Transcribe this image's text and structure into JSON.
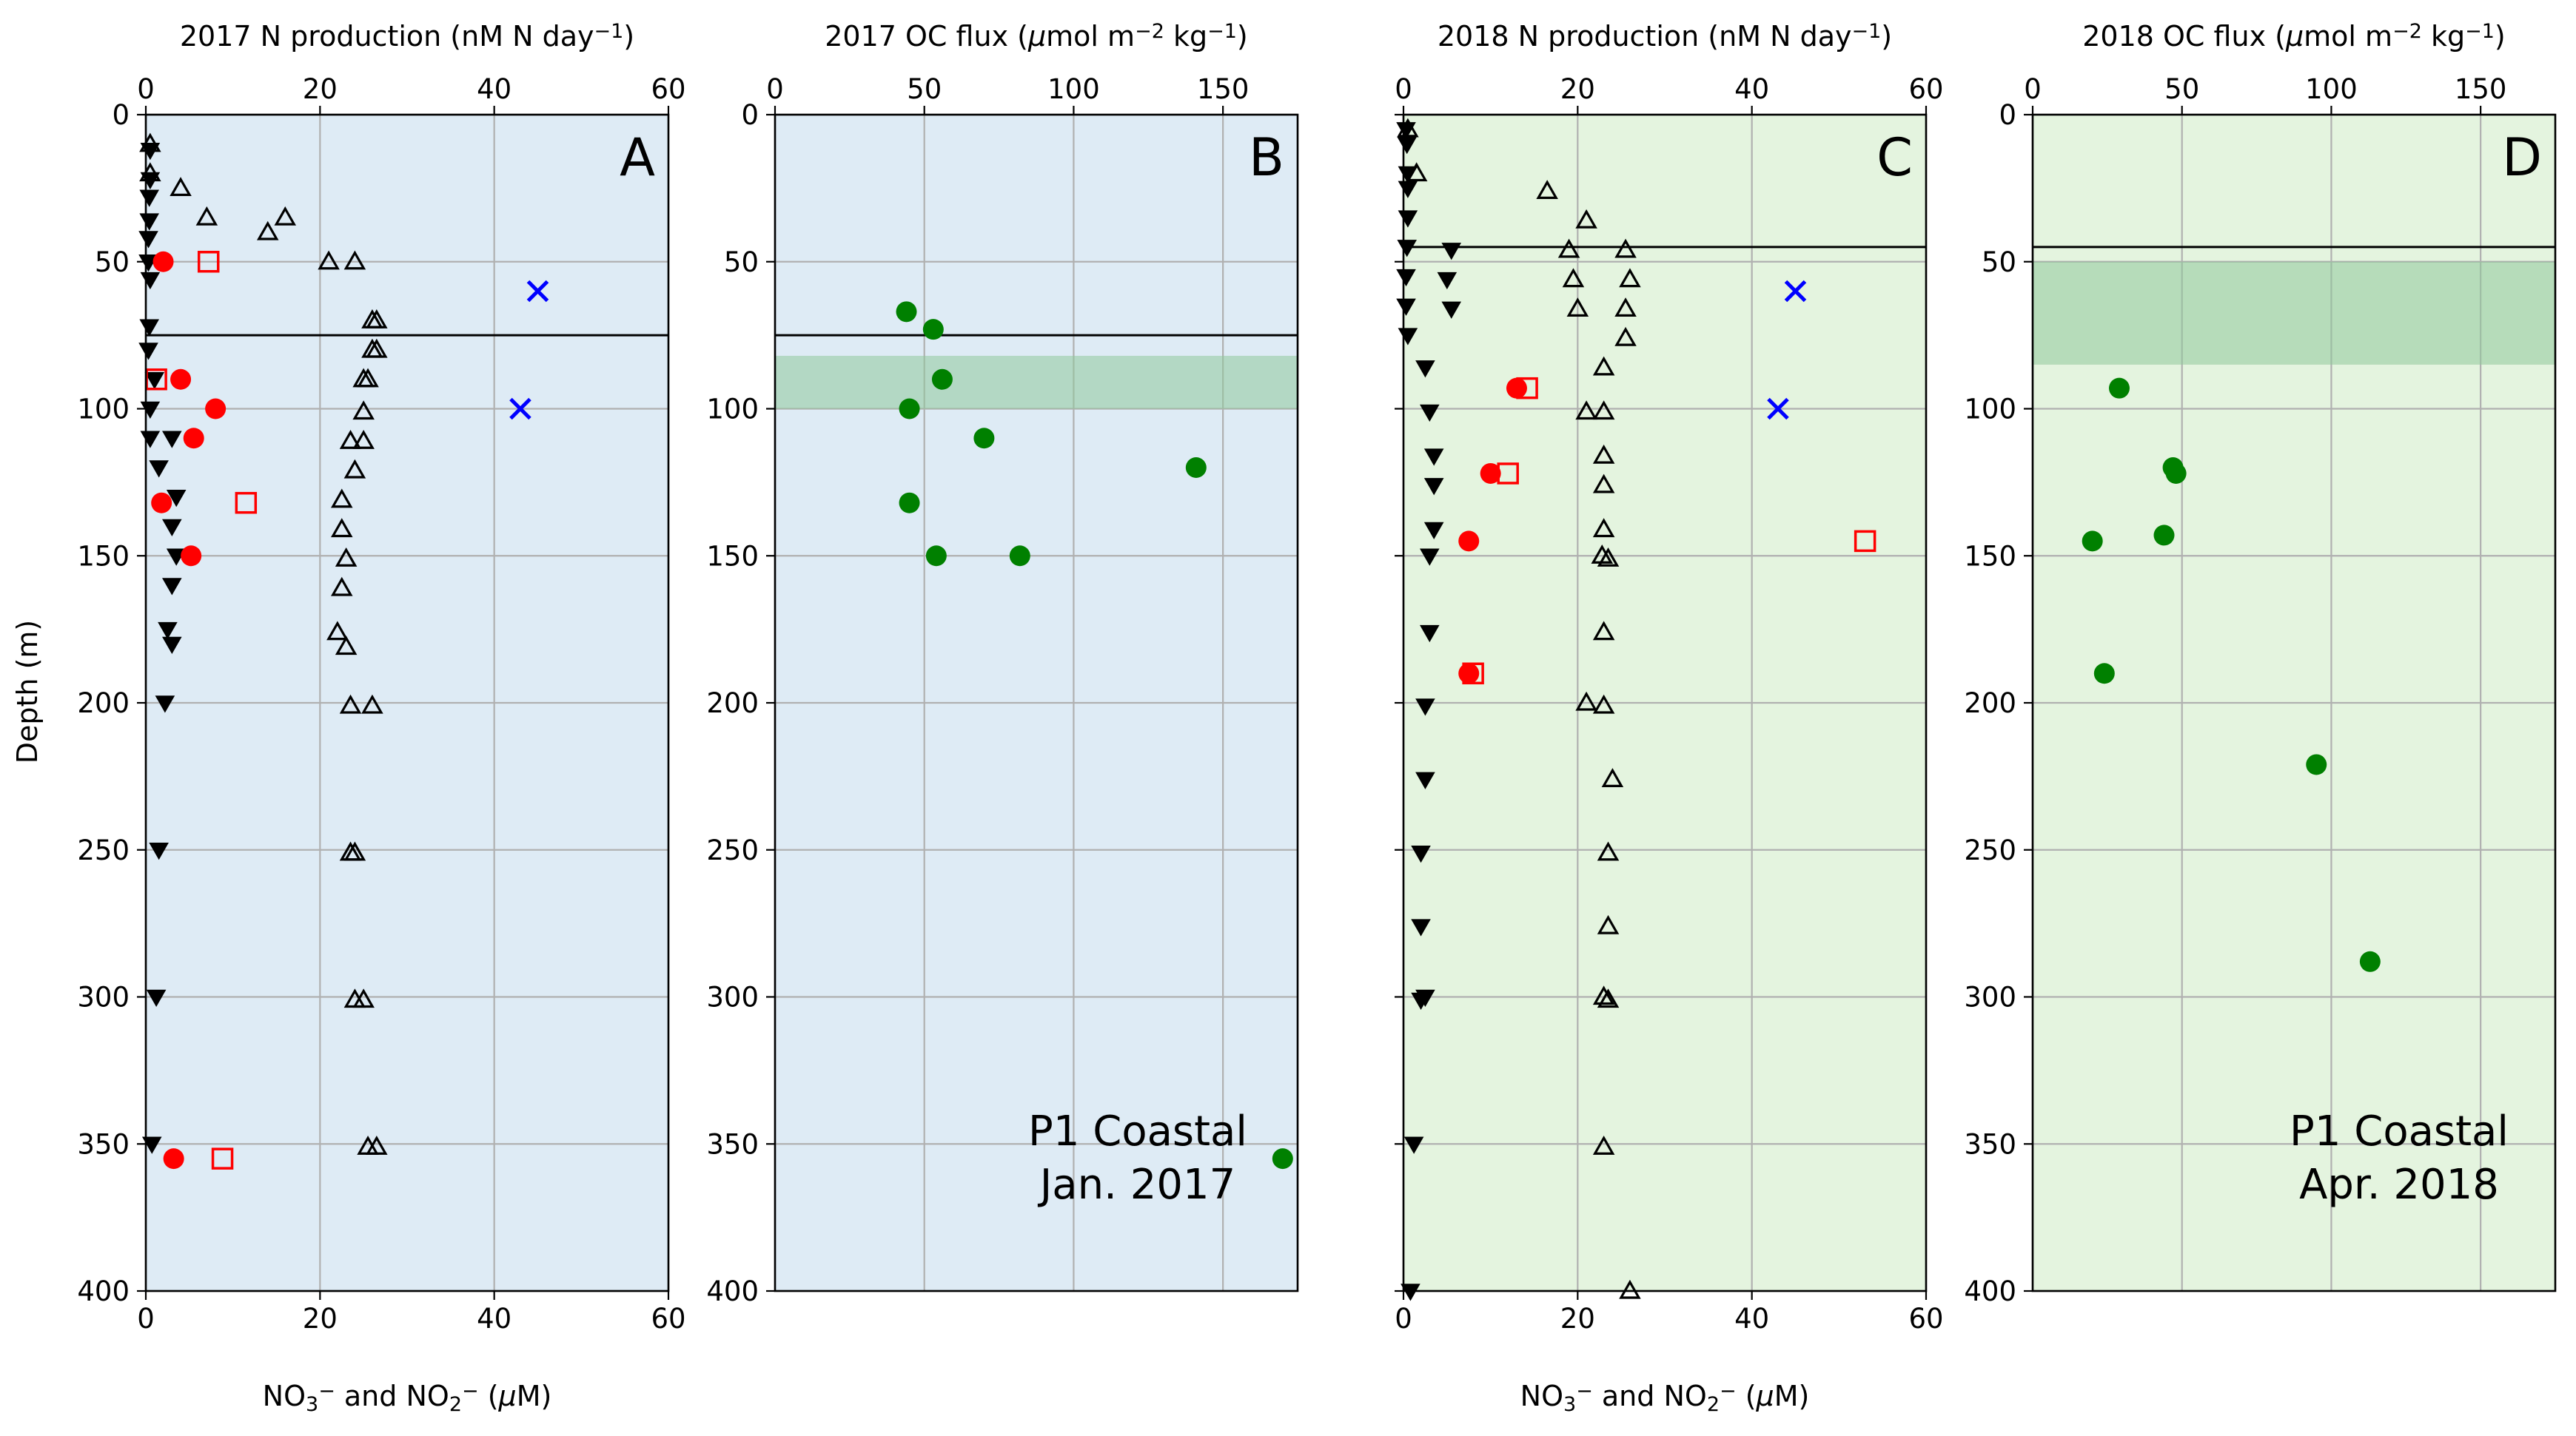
{
  "figure": {
    "ylabel": "Depth (m)",
    "ylim": [
      400,
      0
    ],
    "yticks": [
      0,
      50,
      100,
      150,
      200,
      250,
      300,
      350,
      400
    ],
    "colors": {
      "panel_bg_2017": "#deebf5",
      "panel_bg_2018": "#e4f4df",
      "oxycline_band": "#8fc99a",
      "n_points": "#ff0000",
      "oc_points": "#008000",
      "cross_points": "#0000ff",
      "triangles": "#000000"
    }
  },
  "chart_data": [
    {
      "type": "scatter",
      "panel": "A",
      "top_xlabel": "2017 N production (nM N day⁻¹)",
      "top_xlim": [
        0,
        60
      ],
      "top_xticks": [
        0,
        20,
        40,
        60
      ],
      "bottom_xlabel": "NO₃⁻ and NO₂⁻ (μM)",
      "bottom_xlim": [
        0,
        60
      ],
      "bottom_xticks": [
        0,
        20,
        40,
        60
      ],
      "horizontal_line_depth": 75,
      "series": [
        {
          "marker": "triangle-up",
          "axis": "bottom",
          "points": [
            [
              0.5,
              10
            ],
            [
              0.5,
              20
            ],
            [
              4,
              25
            ],
            [
              7,
              35
            ],
            [
              14,
              40
            ],
            [
              16,
              35
            ],
            [
              21,
              50
            ],
            [
              24,
              50
            ],
            [
              26,
              70
            ],
            [
              26.5,
              70
            ],
            [
              26,
              80
            ],
            [
              26.5,
              80
            ],
            [
              25,
              90
            ],
            [
              25.5,
              90
            ],
            [
              25,
              101
            ],
            [
              23.5,
              111
            ],
            [
              25,
              111
            ],
            [
              24,
              121
            ],
            [
              22.5,
              131
            ],
            [
              22.5,
              141
            ],
            [
              23,
              151
            ],
            [
              22.5,
              161
            ],
            [
              22,
              176
            ],
            [
              23,
              181
            ],
            [
              23.5,
              201
            ],
            [
              26,
              201
            ],
            [
              23.5,
              251
            ],
            [
              24,
              251
            ],
            [
              24,
              301
            ],
            [
              25,
              301
            ],
            [
              25.5,
              351
            ],
            [
              26.5,
              351
            ]
          ]
        },
        {
          "marker": "triangle-down",
          "axis": "bottom",
          "points": [
            [
              0.5,
              12
            ],
            [
              0.5,
              22
            ],
            [
              0.4,
              28
            ],
            [
              0.4,
              36
            ],
            [
              0.3,
              42
            ],
            [
              0.3,
              50
            ],
            [
              0.5,
              56
            ],
            [
              0.4,
              72
            ],
            [
              0.3,
              80
            ],
            [
              1,
              90
            ],
            [
              0.5,
              100
            ],
            [
              0.5,
              110
            ],
            [
              3,
              110
            ],
            [
              1.5,
              120
            ],
            [
              3.5,
              130
            ],
            [
              3,
              140
            ],
            [
              3.5,
              150
            ],
            [
              3,
              160
            ],
            [
              2.5,
              175
            ],
            [
              3,
              180
            ],
            [
              2.2,
              200
            ],
            [
              1.5,
              250
            ],
            [
              1.2,
              300
            ],
            [
              0.7,
              350
            ]
          ]
        },
        {
          "marker": "circle",
          "color": "red",
          "axis": "top",
          "points": [
            [
              2,
              50
            ],
            [
              4,
              90
            ],
            [
              8,
              100
            ],
            [
              5.5,
              110
            ],
            [
              1.8,
              132
            ],
            [
              5.2,
              150
            ],
            [
              3.2,
              355
            ]
          ]
        },
        {
          "marker": "square-open",
          "color": "red",
          "axis": "top",
          "points": [
            [
              7.2,
              50
            ],
            [
              1.2,
              90
            ],
            [
              11.5,
              132
            ],
            [
              8.8,
              355
            ]
          ]
        },
        {
          "marker": "x",
          "color": "blue",
          "axis": "top",
          "points": [
            [
              45,
              60
            ],
            [
              43,
              100
            ]
          ]
        }
      ]
    },
    {
      "type": "scatter",
      "panel": "B",
      "top_xlabel": "2017 OC flux (μmol m⁻² kg⁻¹)",
      "top_xlim": [
        0,
        175
      ],
      "top_xticks": [
        0,
        50,
        100,
        150
      ],
      "horizontal_line_depth": 75,
      "band_depth": [
        82,
        100
      ],
      "annotation": [
        "P1 Coastal",
        "Jan. 2017"
      ],
      "series": [
        {
          "marker": "circle",
          "color": "green",
          "axis": "top",
          "points": [
            [
              44,
              67
            ],
            [
              53,
              73
            ],
            [
              56,
              90
            ],
            [
              45,
              100
            ],
            [
              70,
              110
            ],
            [
              141,
              120
            ],
            [
              45,
              132
            ],
            [
              54,
              150
            ],
            [
              82,
              150
            ],
            [
              170,
              355
            ]
          ]
        }
      ]
    },
    {
      "type": "scatter",
      "panel": "C",
      "top_xlabel": "2018 N production (nM N day⁻¹)",
      "top_xlim": [
        0,
        60
      ],
      "top_xticks": [
        0,
        20,
        40,
        60
      ],
      "bottom_xlabel": "NO₃⁻ and NO₂⁻ (μM)",
      "bottom_xlim": [
        0,
        60
      ],
      "bottom_xticks": [
        0,
        20,
        40,
        60
      ],
      "horizontal_line_depth": 45,
      "series": [
        {
          "marker": "triangle-up",
          "axis": "bottom",
          "points": [
            [
              0.5,
              5
            ],
            [
              1.5,
              20
            ],
            [
              16.5,
              26
            ],
            [
              21,
              36
            ],
            [
              19,
              46
            ],
            [
              25.5,
              46
            ],
            [
              19.5,
              56
            ],
            [
              26,
              56
            ],
            [
              20,
              66
            ],
            [
              25.5,
              66
            ],
            [
              25.5,
              76
            ],
            [
              23,
              86
            ],
            [
              21,
              101
            ],
            [
              23,
              101
            ],
            [
              23,
              116
            ],
            [
              23,
              126
            ],
            [
              23,
              141
            ],
            [
              22.8,
              150
            ],
            [
              23.5,
              151
            ],
            [
              23,
              176
            ],
            [
              21,
              200
            ],
            [
              23,
              201
            ],
            [
              24,
              226
            ],
            [
              23.5,
              251
            ],
            [
              23.5,
              276
            ],
            [
              23,
              300
            ],
            [
              23.5,
              301
            ],
            [
              23,
              351
            ],
            [
              26,
              400
            ]
          ]
        },
        {
          "marker": "triangle-down",
          "axis": "bottom",
          "points": [
            [
              0.3,
              5
            ],
            [
              0.4,
              10
            ],
            [
              0.5,
              20
            ],
            [
              0.5,
              25
            ],
            [
              0.5,
              35
            ],
            [
              0.4,
              45
            ],
            [
              5.5,
              46
            ],
            [
              0.3,
              55
            ],
            [
              5,
              56
            ],
            [
              0.3,
              65
            ],
            [
              5.5,
              66
            ],
            [
              0.5,
              75
            ],
            [
              2.5,
              86
            ],
            [
              3,
              101
            ],
            [
              3.5,
              116
            ],
            [
              3.5,
              126
            ],
            [
              3.5,
              141
            ],
            [
              3,
              150
            ],
            [
              3,
              176
            ],
            [
              2.5,
              201
            ],
            [
              2.5,
              226
            ],
            [
              2,
              251
            ],
            [
              2,
              276
            ],
            [
              2.5,
              300
            ],
            [
              2,
              301
            ],
            [
              1.2,
              350
            ],
            [
              0.8,
              400
            ]
          ]
        },
        {
          "marker": "circle",
          "color": "red",
          "axis": "top",
          "points": [
            [
              13,
              93
            ],
            [
              10,
              122
            ],
            [
              7.5,
              145
            ],
            [
              7.5,
              190
            ]
          ]
        },
        {
          "marker": "square-open",
          "color": "red",
          "axis": "top",
          "points": [
            [
              14.2,
              93
            ],
            [
              12,
              122
            ],
            [
              53,
              145
            ],
            [
              8,
              190
            ]
          ]
        },
        {
          "marker": "x",
          "color": "blue",
          "axis": "top",
          "points": [
            [
              45,
              60
            ],
            [
              43,
              100
            ]
          ]
        }
      ]
    },
    {
      "type": "scatter",
      "panel": "D",
      "top_xlabel": "2018 OC flux (μmol m⁻² kg⁻¹)",
      "top_xlim": [
        0,
        175
      ],
      "top_xticks": [
        0,
        50,
        100,
        150
      ],
      "horizontal_line_depth": 45,
      "band_depth": [
        50,
        85
      ],
      "annotation": [
        "P1 Coastal",
        "Apr. 2018"
      ],
      "series": [
        {
          "marker": "circle",
          "color": "green",
          "axis": "top",
          "points": [
            [
              29,
              93
            ],
            [
              47,
              120
            ],
            [
              48,
              122
            ],
            [
              44,
              143
            ],
            [
              20,
              145
            ],
            [
              24,
              190
            ],
            [
              95,
              221
            ],
            [
              113,
              288
            ]
          ]
        }
      ]
    }
  ]
}
